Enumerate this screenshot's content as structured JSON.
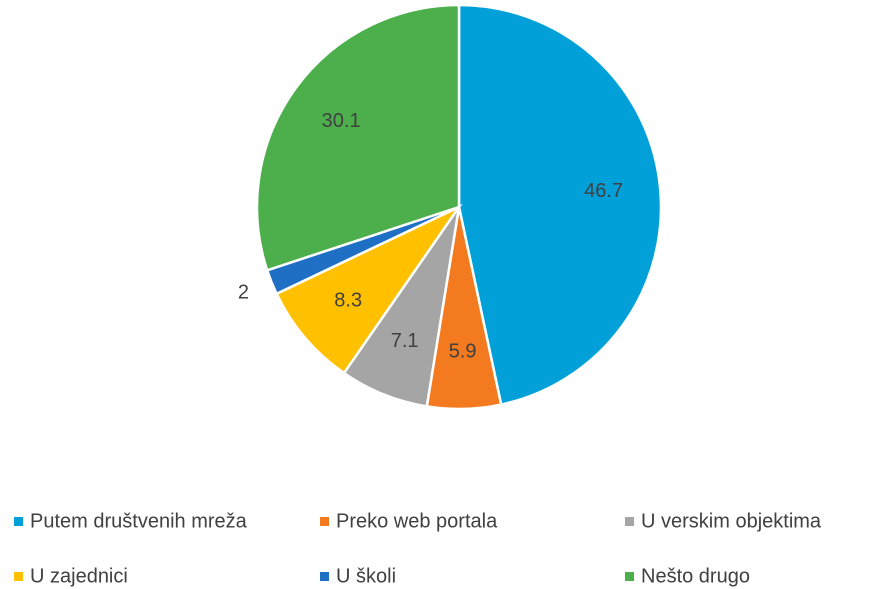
{
  "chart_data": {
    "type": "pie",
    "categories": [
      "Putem društvenih mreža",
      "Preko web portala",
      "U verskim objektima",
      "U zajednici",
      "U školi",
      "Nešto drugo"
    ],
    "values": [
      46.7,
      5.9,
      7.1,
      8.3,
      2,
      30.1
    ],
    "colors": [
      "#02a0d8",
      "#f47a20",
      "#a5a5a5",
      "#ffc000",
      "#1f6fc4",
      "#4caf4c"
    ],
    "legend": "bottom"
  }
}
